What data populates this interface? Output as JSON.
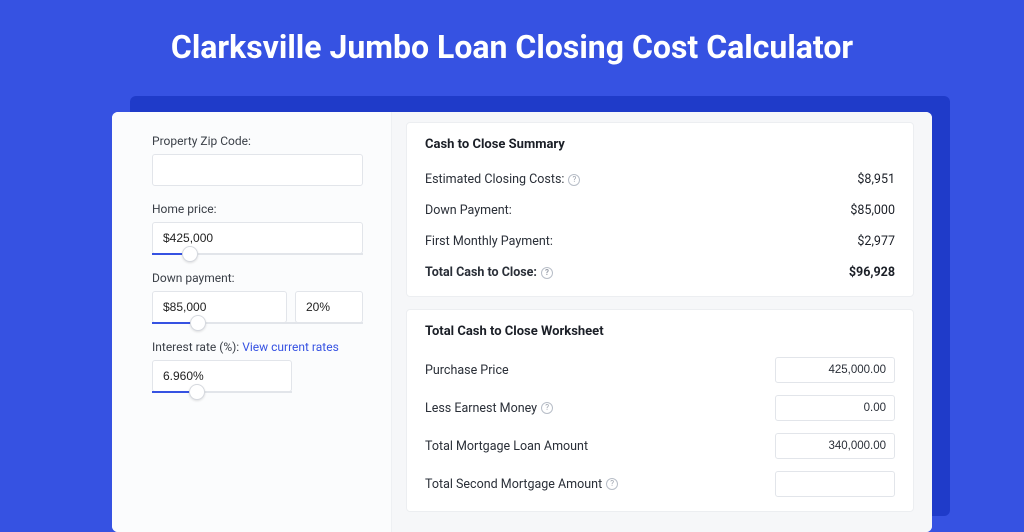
{
  "colors": {
    "page_bg": "#3652e2",
    "backdrop": "#1f3bc9",
    "card_bg": "#ffffff",
    "left_bg": "#fbfcfd",
    "right_bg": "#f6f7f9",
    "border": "#e2e5ea",
    "accent": "#3652e2",
    "title_color": "#ffffff"
  },
  "title": "Clarksville Jumbo Loan Closing Cost Calculator",
  "form": {
    "zip": {
      "label": "Property Zip Code:",
      "value": ""
    },
    "home_price": {
      "label": "Home price:",
      "value": "$425,000",
      "slider_pct": 18
    },
    "down_payment": {
      "label": "Down payment:",
      "value": "$85,000",
      "pct_value": "20%",
      "slider_pct": 22
    },
    "interest_rate": {
      "label": "Interest rate (%):",
      "link_text": "View current rates",
      "value": "6.960%",
      "slider_pct": 32
    }
  },
  "summary": {
    "heading": "Cash to Close Summary",
    "rows": [
      {
        "label": "Estimated Closing Costs:",
        "help": true,
        "value": "$8,951"
      },
      {
        "label": "Down Payment:",
        "help": false,
        "value": "$85,000"
      },
      {
        "label": "First Monthly Payment:",
        "help": false,
        "value": "$2,977"
      }
    ],
    "total": {
      "label": "Total Cash to Close:",
      "help": true,
      "value": "$96,928"
    }
  },
  "worksheet": {
    "heading": "Total Cash to Close Worksheet",
    "rows": [
      {
        "label": "Purchase Price",
        "help": false,
        "value": "425,000.00"
      },
      {
        "label": "Less Earnest Money",
        "help": true,
        "value": "0.00"
      },
      {
        "label": "Total Mortgage Loan Amount",
        "help": false,
        "value": "340,000.00"
      },
      {
        "label": "Total Second Mortgage Amount",
        "help": true,
        "value": ""
      }
    ]
  }
}
